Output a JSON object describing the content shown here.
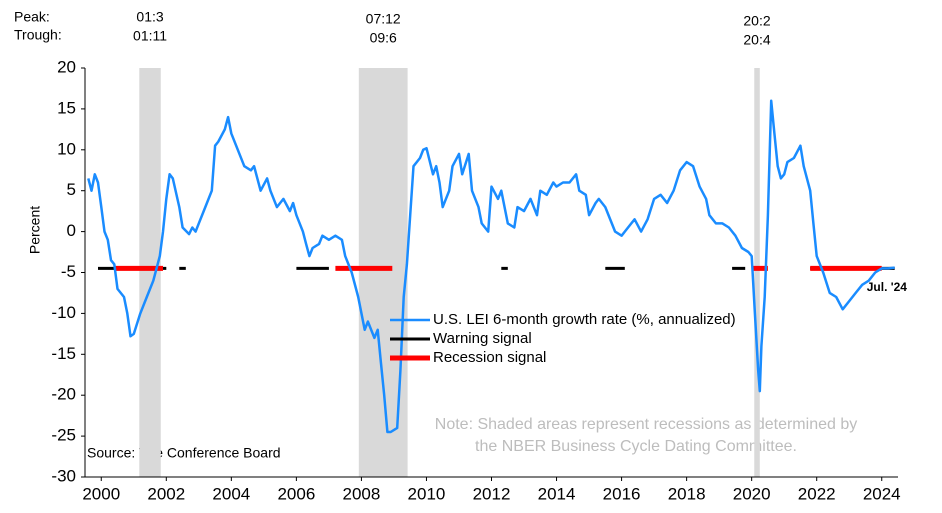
{
  "chart_data": {
    "type": "line",
    "ylabel": "Percent",
    "xlim": [
      1999.5,
      2024.5
    ],
    "xticks": [
      2000,
      2002,
      2004,
      2006,
      2008,
      2010,
      2012,
      2014,
      2016,
      2018,
      2020,
      2022,
      2024
    ],
    "ylim": [
      -30,
      20
    ],
    "yticks": [
      -30,
      -25,
      -20,
      -15,
      -10,
      -5,
      0,
      5,
      10,
      15,
      20
    ],
    "grid": false,
    "peak_label": "Peak:",
    "trough_label": "Trough:",
    "recessions": [
      {
        "peak": "01:3",
        "trough": "01:11",
        "start": 2001.17,
        "end": 2001.83
      },
      {
        "peak": "07:12",
        "trough": "09:6",
        "start": 2007.92,
        "end": 2009.42
      },
      {
        "peak": "20:2",
        "trough": "20:4",
        "start": 2020.08,
        "end": 2020.25
      }
    ],
    "series": [
      {
        "name": "U.S. LEI 6-month growth rate (%, annualized)",
        "color": "#1a8cff",
        "x": [
          1999.6,
          1999.7,
          1999.8,
          1999.9,
          2000.0,
          2000.1,
          2000.2,
          2000.3,
          2000.4,
          2000.5,
          2000.7,
          2000.8,
          2000.9,
          2001.0,
          2001.2,
          2001.4,
          2001.6,
          2001.8,
          2001.9,
          2002.0,
          2002.1,
          2002.2,
          2002.4,
          2002.5,
          2002.7,
          2002.8,
          2002.9,
          2003.0,
          2003.2,
          2003.4,
          2003.5,
          2003.6,
          2003.8,
          2003.9,
          2004.0,
          2004.2,
          2004.4,
          2004.6,
          2004.7,
          2004.9,
          2005.1,
          2005.2,
          2005.4,
          2005.6,
          2005.8,
          2005.9,
          2006.0,
          2006.2,
          2006.3,
          2006.4,
          2006.5,
          2006.7,
          2006.8,
          2007.0,
          2007.2,
          2007.4,
          2007.5,
          2007.7,
          2007.9,
          2008.1,
          2008.2,
          2008.4,
          2008.5,
          2008.6,
          2008.7,
          2008.8,
          2008.9,
          2009.1,
          2009.2,
          2009.3,
          2009.4,
          2009.5,
          2009.6,
          2009.8,
          2009.9,
          2010.0,
          2010.2,
          2010.3,
          2010.4,
          2010.5,
          2010.7,
          2010.8,
          2011.0,
          2011.1,
          2011.3,
          2011.4,
          2011.6,
          2011.7,
          2011.9,
          2012.0,
          2012.2,
          2012.3,
          2012.5,
          2012.7,
          2012.8,
          2013.0,
          2013.2,
          2013.4,
          2013.5,
          2013.7,
          2013.9,
          2014.0,
          2014.2,
          2014.4,
          2014.6,
          2014.7,
          2014.9,
          2015.0,
          2015.2,
          2015.3,
          2015.5,
          2015.7,
          2015.8,
          2016.0,
          2016.1,
          2016.3,
          2016.4,
          2016.6,
          2016.8,
          2017.0,
          2017.2,
          2017.4,
          2017.6,
          2017.8,
          2018.0,
          2018.2,
          2018.4,
          2018.6,
          2018.7,
          2018.9,
          2019.1,
          2019.3,
          2019.5,
          2019.7,
          2019.9,
          2020.0,
          2020.1,
          2020.2,
          2020.25,
          2020.3,
          2020.4,
          2020.5,
          2020.6,
          2020.7,
          2020.8,
          2020.9,
          2021.0,
          2021.1,
          2021.3,
          2021.5,
          2021.6,
          2021.8,
          2021.9,
          2022.0,
          2022.2,
          2022.4,
          2022.6,
          2022.8,
          2023.0,
          2023.2,
          2023.4,
          2023.6,
          2023.8,
          2024.0,
          2024.2,
          2024.4
        ],
        "values": [
          6.5,
          5,
          7,
          6,
          3,
          0,
          -1,
          -3.5,
          -4,
          -7,
          -8,
          -10,
          -12.8,
          -12.5,
          -10,
          -8,
          -6,
          -3,
          0,
          4,
          7,
          6.5,
          3,
          0.5,
          -0.3,
          0.5,
          0,
          1,
          3,
          5,
          10.5,
          11,
          12.5,
          14,
          12,
          10,
          8,
          7.5,
          8,
          5,
          6.5,
          5,
          3,
          4,
          2.5,
          3.5,
          2,
          0,
          -1.5,
          -3,
          -2,
          -1.5,
          -0.5,
          -1,
          -0.5,
          -1,
          -3,
          -5,
          -8,
          -12,
          -11,
          -13,
          -12,
          -16,
          -20,
          -24.5,
          -24.5,
          -24,
          -17,
          -8,
          -4,
          2,
          8,
          9,
          10,
          10.2,
          7,
          8,
          6,
          3,
          5,
          8,
          9.5,
          7,
          9.5,
          5,
          3,
          1,
          0,
          5.5,
          4,
          5,
          1,
          0.5,
          3,
          2.5,
          4,
          2,
          5,
          4.5,
          6,
          5.5,
          6,
          6,
          7,
          5,
          4.5,
          2,
          3.5,
          4,
          3,
          1,
          0,
          -0.5,
          0,
          1,
          1.5,
          0,
          1.5,
          4,
          4.5,
          3.5,
          5,
          7.5,
          8.5,
          8,
          5.5,
          4,
          2,
          1,
          1,
          0.5,
          -0.5,
          -2,
          -2.5,
          -3,
          -10,
          -17,
          -19.5,
          -14,
          -8,
          2,
          16,
          12,
          8,
          6.5,
          7,
          8.5,
          9,
          10.5,
          8,
          5,
          1,
          -3,
          -5,
          -7.5,
          -8,
          -9.5,
          -8.5,
          -7.5,
          -6.5,
          -6,
          -5,
          -4.5,
          -4.5,
          -4.4
        ]
      },
      {
        "name": "Warning signal",
        "color": "#000000",
        "x": [
          1999.9,
          2000.6,
          2001.2,
          2001.9,
          2002.0,
          2002.2,
          2002.4,
          2002.6,
          2004,
          2006.0,
          2007.0,
          2009,
          2012.3,
          2012.5,
          2014,
          2015.5,
          2016.1,
          2018,
          2019.4,
          2019.8,
          2021,
          2021.8,
          2024.4
        ],
        "values": [
          -4.5,
          -4.5,
          null,
          -4.5,
          -4.5,
          null,
          -4.5,
          -4.5,
          null,
          -4.5,
          -4.5,
          null,
          -4.5,
          -4.5,
          null,
          -4.5,
          -4.5,
          null,
          -4.5,
          -4.5,
          null,
          -4.5,
          -4.5
        ]
      },
      {
        "name": "Recession signal",
        "color": "#ff0000",
        "x": [
          2000.4,
          2001.9,
          2005,
          2007.2,
          2008.95,
          2015,
          2020.0,
          2020.5,
          2021,
          2021.8,
          2024.0
        ],
        "values": [
          -4.5,
          -4.5,
          null,
          -4.5,
          -4.5,
          null,
          -4.5,
          -4.5,
          null,
          -4.5,
          -4.5
        ]
      }
    ],
    "end_label": "Jul. '24",
    "source": "Source: The Conference Board",
    "note": [
      "Note: Shaded areas represent recessions as determined by",
      "the NBER Business Cycle Dating Committee."
    ]
  }
}
